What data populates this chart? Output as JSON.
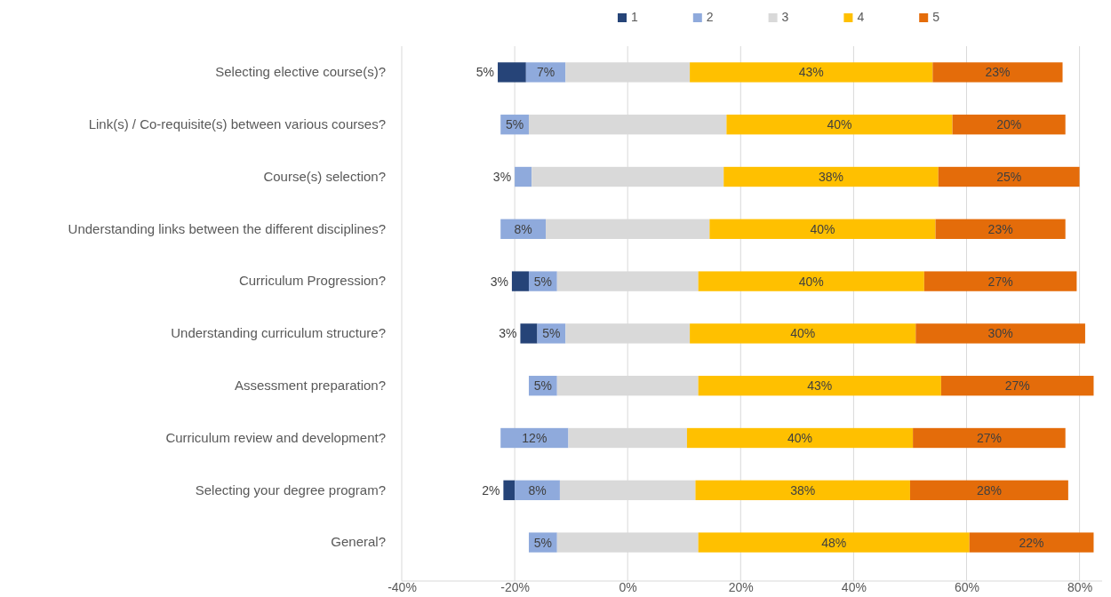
{
  "chart_data": {
    "type": "bar",
    "orientation": "horizontal",
    "categories": [
      "Selecting elective course(s)?",
      "Link(s) / Co-requisite(s) between various courses?",
      "Course(s) selection?",
      "Understanding links between the different disciplines?",
      "Curriculum Progression?",
      "Understanding curriculum structure?",
      "Assessment preparation?",
      "Curriculum review and development?",
      "Selecting your degree program?",
      "General?"
    ],
    "series": [
      {
        "name": "1",
        "color": "#264478",
        "values": [
          5,
          null,
          null,
          null,
          3,
          3,
          null,
          null,
          2,
          null
        ],
        "base": [
          -23,
          null,
          null,
          null,
          -20.5,
          -19,
          null,
          null,
          -22,
          null
        ],
        "value_labels": [
          "5%",
          null,
          null,
          null,
          "3%",
          "3%",
          null,
          null,
          "2%",
          null
        ]
      },
      {
        "name": "2",
        "color": "#8faadc",
        "values": [
          7,
          5,
          3,
          8,
          5,
          5,
          5,
          12,
          8,
          5
        ],
        "base": [
          -18,
          -22.5,
          -20,
          -22.5,
          -17.5,
          -16,
          -17.5,
          -22.5,
          -20,
          -17.5
        ],
        "value_labels": [
          "7%",
          "5%",
          "3%",
          "8%",
          "5%",
          "5%",
          "5%",
          "12%",
          "8%",
          "5%"
        ]
      },
      {
        "name": "3",
        "color": "#d9d9d9",
        "values": [
          22,
          35,
          34,
          29,
          25,
          22,
          25,
          21,
          24,
          25
        ],
        "base": [
          -11,
          -17.5,
          -17,
          -14.5,
          -12.5,
          -11,
          -12.5,
          -10.5,
          -12,
          -12.5
        ]
      },
      {
        "name": "4",
        "color": "#ffc000",
        "values": [
          43,
          40,
          38,
          40,
          40,
          40,
          43,
          40,
          38,
          48
        ],
        "base": [
          11,
          17.5,
          17,
          14.5,
          12.5,
          11,
          12.5,
          10.5,
          12,
          12.5
        ],
        "value_labels": [
          "43%",
          "40%",
          "38%",
          "40%",
          "40%",
          "40%",
          "43%",
          "40%",
          "38%",
          "48%"
        ]
      },
      {
        "name": "5",
        "color": "#e46c0a",
        "values": [
          23,
          20,
          25,
          23,
          27,
          30,
          27,
          27,
          28,
          22
        ],
        "base": [
          54,
          57.5,
          55,
          54.5,
          52.5,
          51,
          55.5,
          50.5,
          50,
          60.5
        ],
        "value_labels": [
          "23%",
          "20%",
          "25%",
          "23%",
          "27%",
          "30%",
          "27%",
          "27%",
          "28%",
          "22%"
        ]
      }
    ],
    "xlim": [
      -40,
      84
    ],
    "xticks": [
      {
        "value": -40,
        "label": "-40%"
      },
      {
        "value": -20,
        "label": "-20%"
      },
      {
        "value": 0,
        "label": "0%"
      },
      {
        "value": 20,
        "label": "20%"
      },
      {
        "value": 40,
        "label": "40%"
      },
      {
        "value": 60,
        "label": "60%"
      },
      {
        "value": 80,
        "label": "80%"
      }
    ],
    "grid": "x",
    "legend": "top"
  }
}
